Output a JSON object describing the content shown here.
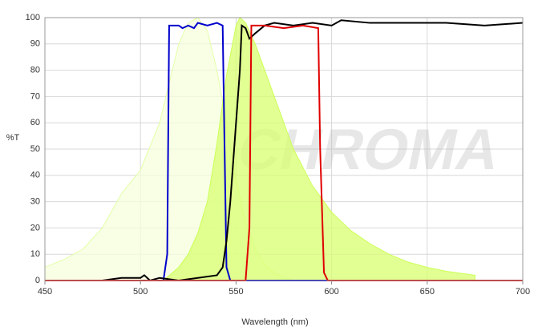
{
  "chart_data": {
    "type": "line",
    "watermark": "CHROMA",
    "xlabel": "Wavelength (nm)",
    "ylabel": "%T",
    "xlim": [
      450,
      700
    ],
    "ylim": [
      0,
      100
    ],
    "xticks": [
      450,
      500,
      550,
      600,
      650,
      700
    ],
    "yticks": [
      0,
      10,
      20,
      30,
      40,
      50,
      60,
      70,
      80,
      90,
      100
    ],
    "grid": true,
    "series": [
      {
        "color": "#e4ffa8",
        "fill": "#f6ffdc",
        "area": true,
        "x": [
          450,
          460,
          470,
          480,
          490,
          500,
          510,
          515,
          520,
          525,
          530,
          535,
          540,
          545,
          550,
          555,
          560,
          565,
          570,
          575,
          580
        ],
        "values": [
          5,
          8,
          12,
          20,
          33,
          42,
          60,
          75,
          90,
          98,
          100,
          95,
          80,
          60,
          38,
          22,
          12,
          6,
          3,
          1,
          0
        ]
      },
      {
        "color": "#ccff55",
        "fill": "#d8ff70",
        "area": true,
        "x": [
          512,
          520,
          525,
          530,
          535,
          540,
          545,
          550,
          552,
          555,
          560,
          565,
          570,
          575,
          580,
          590,
          600,
          610,
          620,
          630,
          640,
          650,
          660,
          675,
          675
        ],
        "values": [
          0,
          5,
          10,
          18,
          30,
          52,
          78,
          97,
          100,
          98,
          90,
          80,
          70,
          60,
          50,
          36,
          26,
          19,
          14,
          10,
          7,
          5,
          3.5,
          2,
          0
        ]
      },
      {
        "color": "#0000cc",
        "area": false,
        "x": [
          450,
          512,
          514,
          515,
          520,
          522,
          525,
          528,
          530,
          535,
          540,
          543,
          544,
          545,
          547,
          700
        ],
        "values": [
          0,
          0,
          10,
          97,
          97,
          96,
          97,
          96,
          98,
          97,
          98,
          97,
          50,
          5,
          0,
          0
        ]
      },
      {
        "color": "#000000",
        "area": false,
        "x": [
          450,
          480,
          490,
          500,
          502,
          505,
          510,
          520,
          530,
          540,
          543,
          545,
          547,
          550,
          552,
          553,
          555,
          557,
          560,
          565,
          570,
          580,
          590,
          600,
          605,
          620,
          640,
          660,
          680,
          700
        ],
        "values": [
          0,
          0,
          1,
          1,
          2,
          0,
          1,
          0,
          1,
          2,
          5,
          15,
          30,
          60,
          80,
          97,
          96,
          92,
          94,
          97,
          98,
          97,
          98,
          97,
          99,
          98,
          98,
          98,
          97,
          98
        ]
      },
      {
        "color": "#e00000",
        "area": false,
        "x": [
          450,
          555,
          557,
          558,
          565,
          575,
          585,
          593,
          594,
          596,
          598,
          700
        ],
        "values": [
          0,
          0,
          20,
          97,
          97,
          96,
          97,
          96,
          50,
          3,
          0,
          0
        ]
      }
    ]
  }
}
